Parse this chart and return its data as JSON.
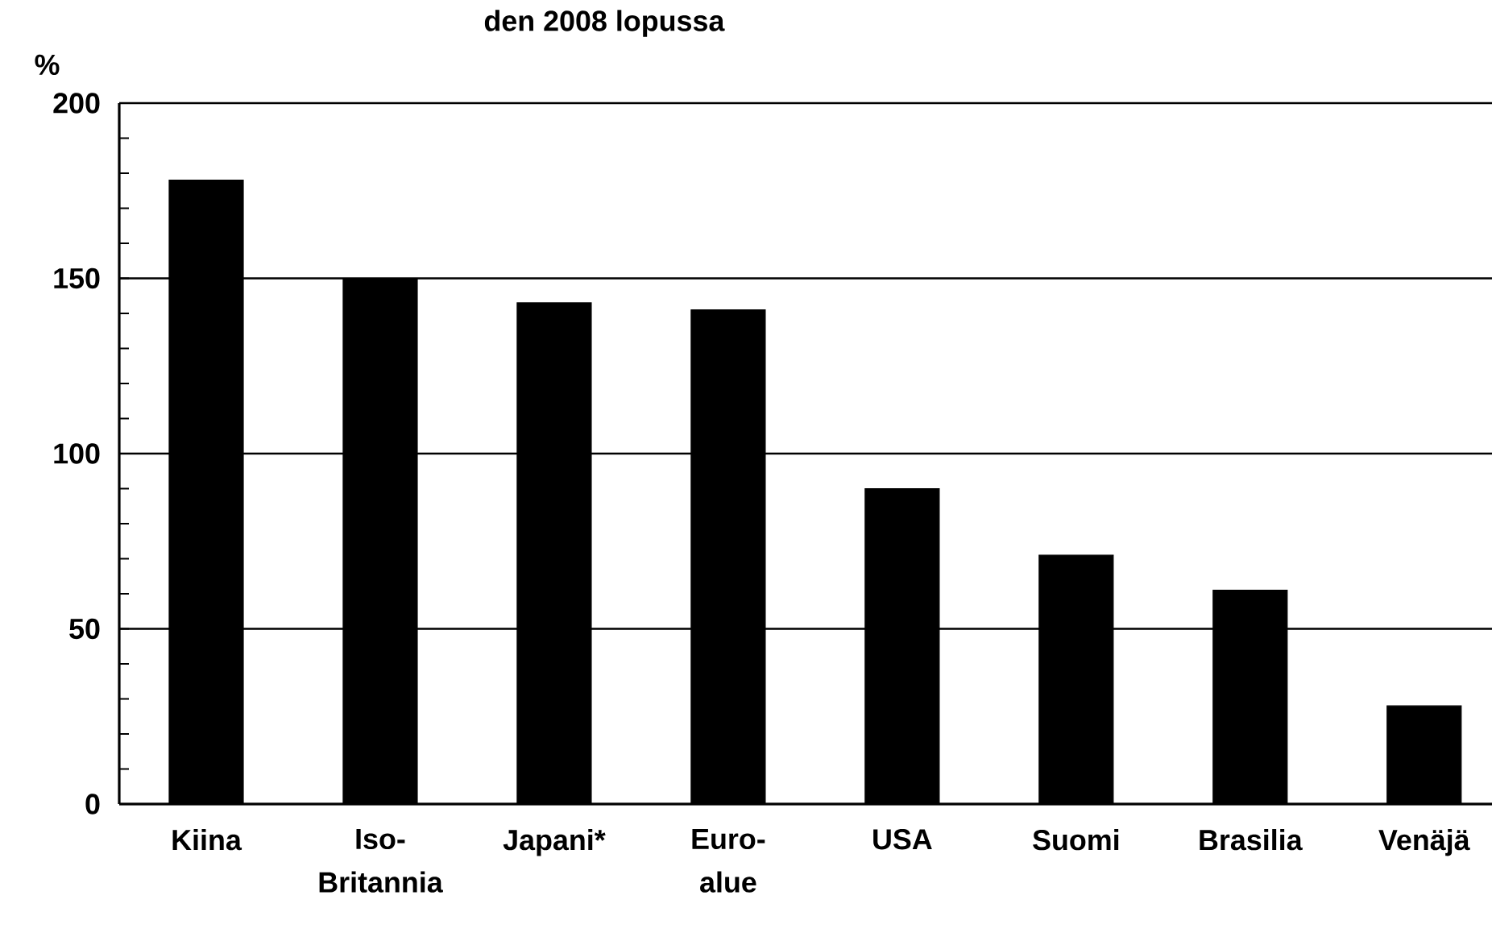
{
  "chart_data": {
    "type": "bar",
    "title": "den 2008 lopussa",
    "ylabel": "%",
    "categories": [
      "Kiina",
      "Iso-Britannia",
      "Japani*",
      "Euro-alue",
      "USA",
      "Suomi",
      "Brasilia",
      "Venäjä"
    ],
    "values": [
      178,
      150,
      143,
      141,
      90,
      71,
      61,
      28
    ],
    "color": "#000000",
    "ylim": [
      0,
      200
    ],
    "yticks": [
      0,
      50,
      100,
      150,
      200
    ],
    "grid": "y"
  }
}
